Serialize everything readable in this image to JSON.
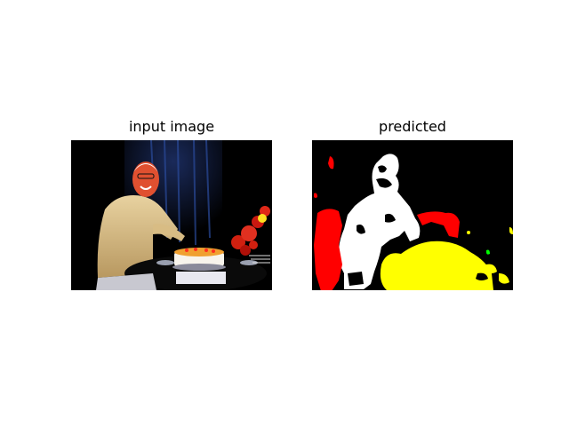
{
  "figure": {
    "left_title": "input image",
    "right_title": "predicted"
  },
  "segmentation_colors": {
    "background": "#000000",
    "person": "#ffffff",
    "flowers": "#ff0000",
    "cake": "#ffff00",
    "plant": "#00ff00"
  }
}
